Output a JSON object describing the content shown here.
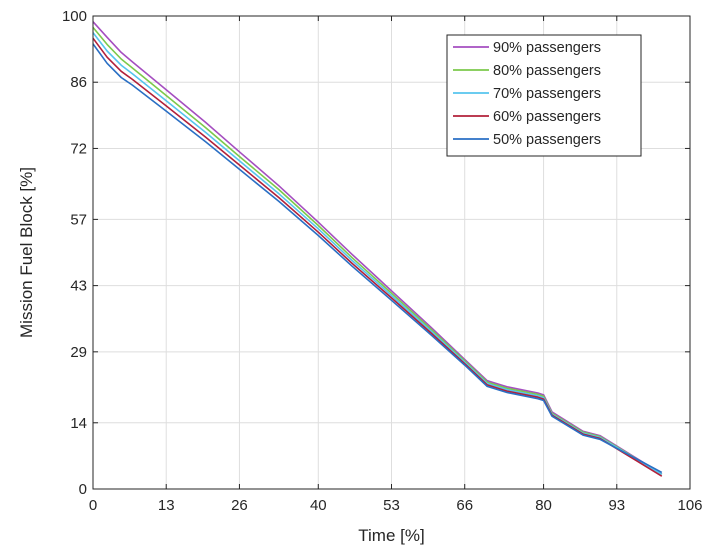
{
  "chart_data": {
    "type": "line",
    "xlabel": "Time [%]",
    "ylabel": "Mission Fuel Block [%]",
    "xlim": [
      0,
      106
    ],
    "ylim": [
      0,
      100
    ],
    "xticks": [
      0,
      13,
      26,
      40,
      53,
      66,
      80,
      93,
      106
    ],
    "yticks": [
      0,
      14,
      29,
      43,
      57,
      72,
      86,
      100
    ],
    "grid": true,
    "legend_position": "top-right",
    "series": [
      {
        "name": "90% passengers",
        "color": "#a54ec0",
        "x": [
          0,
          2.5,
          5,
          7,
          13,
          20,
          26,
          33,
          40,
          46,
          53,
          60,
          66,
          70,
          73.5,
          79,
          80,
          81.5,
          87,
          90,
          101
        ],
        "y": [
          98.8,
          95.5,
          92.3,
          90.3,
          84.4,
          77.5,
          71.3,
          64.1,
          56.4,
          49.6,
          41.9,
          34.2,
          27.4,
          22.9,
          21.6,
          20.3,
          19.9,
          16.3,
          12.2,
          11.3,
          3.2
        ]
      },
      {
        "name": "80% passengers",
        "color": "#7cc94b",
        "x": [
          0,
          2.5,
          5,
          7,
          13,
          20,
          26,
          33,
          40,
          46,
          53,
          60,
          66,
          70,
          73.5,
          79,
          80,
          81.5,
          87,
          90,
          101
        ],
        "y": [
          97.6,
          94.0,
          90.9,
          89.0,
          83.2,
          76.4,
          70.3,
          63.3,
          55.7,
          48.9,
          41.4,
          33.8,
          27.1,
          22.6,
          21.3,
          20.0,
          19.6,
          16.0,
          12.0,
          11.1,
          3.1
        ]
      },
      {
        "name": "70% passengers",
        "color": "#56c4ee",
        "x": [
          0,
          2.5,
          5,
          7,
          13,
          20,
          26,
          33,
          40,
          46,
          53,
          60,
          66,
          70,
          73.5,
          79,
          80,
          81.5,
          87,
          90,
          101
        ],
        "y": [
          96.5,
          92.6,
          89.6,
          87.8,
          82.1,
          75.4,
          69.4,
          62.4,
          55.0,
          48.3,
          40.9,
          33.4,
          26.8,
          22.3,
          21.0,
          19.7,
          19.3,
          15.8,
          11.8,
          10.9,
          3.1
        ]
      },
      {
        "name": "60% passengers",
        "color": "#b2203a",
        "x": [
          0,
          2.5,
          5,
          7,
          13,
          20,
          26,
          33,
          40,
          46,
          53,
          60,
          66,
          70,
          73.5,
          79,
          80,
          81.5,
          87,
          90,
          101
        ],
        "y": [
          95.3,
          91.3,
          88.3,
          86.6,
          81.0,
          74.4,
          68.5,
          61.6,
          54.3,
          47.7,
          40.4,
          33.0,
          26.5,
          22.0,
          20.7,
          19.4,
          19.0,
          15.6,
          11.6,
          10.7,
          2.7
        ]
      },
      {
        "name": "50% passengers",
        "color": "#2a6fc4",
        "x": [
          0,
          2.5,
          5,
          7,
          13,
          20,
          26,
          33,
          40,
          46,
          53,
          60,
          66,
          70,
          73.5,
          79,
          80,
          81.5,
          87,
          90,
          101
        ],
        "y": [
          94.1,
          90.0,
          87.0,
          85.4,
          79.9,
          73.4,
          67.6,
          60.8,
          53.6,
          47.1,
          39.9,
          32.6,
          26.2,
          21.7,
          20.4,
          19.1,
          18.7,
          15.4,
          11.4,
          10.5,
          3.5
        ]
      }
    ]
  }
}
